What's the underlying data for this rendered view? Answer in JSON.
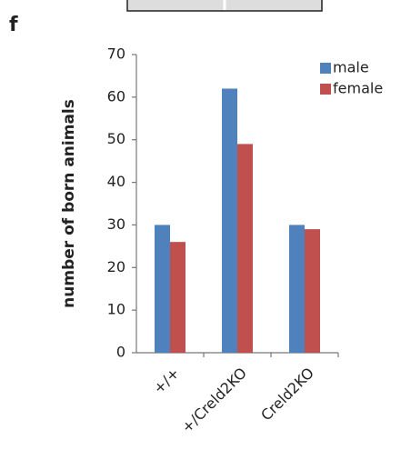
{
  "panel_label": "f",
  "chart_data": {
    "type": "bar",
    "y_label": "number of born animals",
    "categories": [
      "+/+",
      "+/Creld2KO",
      "Creld2KO"
    ],
    "series": [
      {
        "name": "male",
        "color": "#4f81bd",
        "values": [
          30,
          62,
          30
        ]
      },
      {
        "name": "female",
        "color": "#c0504d",
        "values": [
          26,
          49,
          29
        ]
      }
    ],
    "ylim": [
      0,
      70
    ],
    "yticks": [
      0,
      10,
      20,
      30,
      40,
      50,
      60,
      70
    ],
    "legend": "top-right",
    "grid": false
  }
}
